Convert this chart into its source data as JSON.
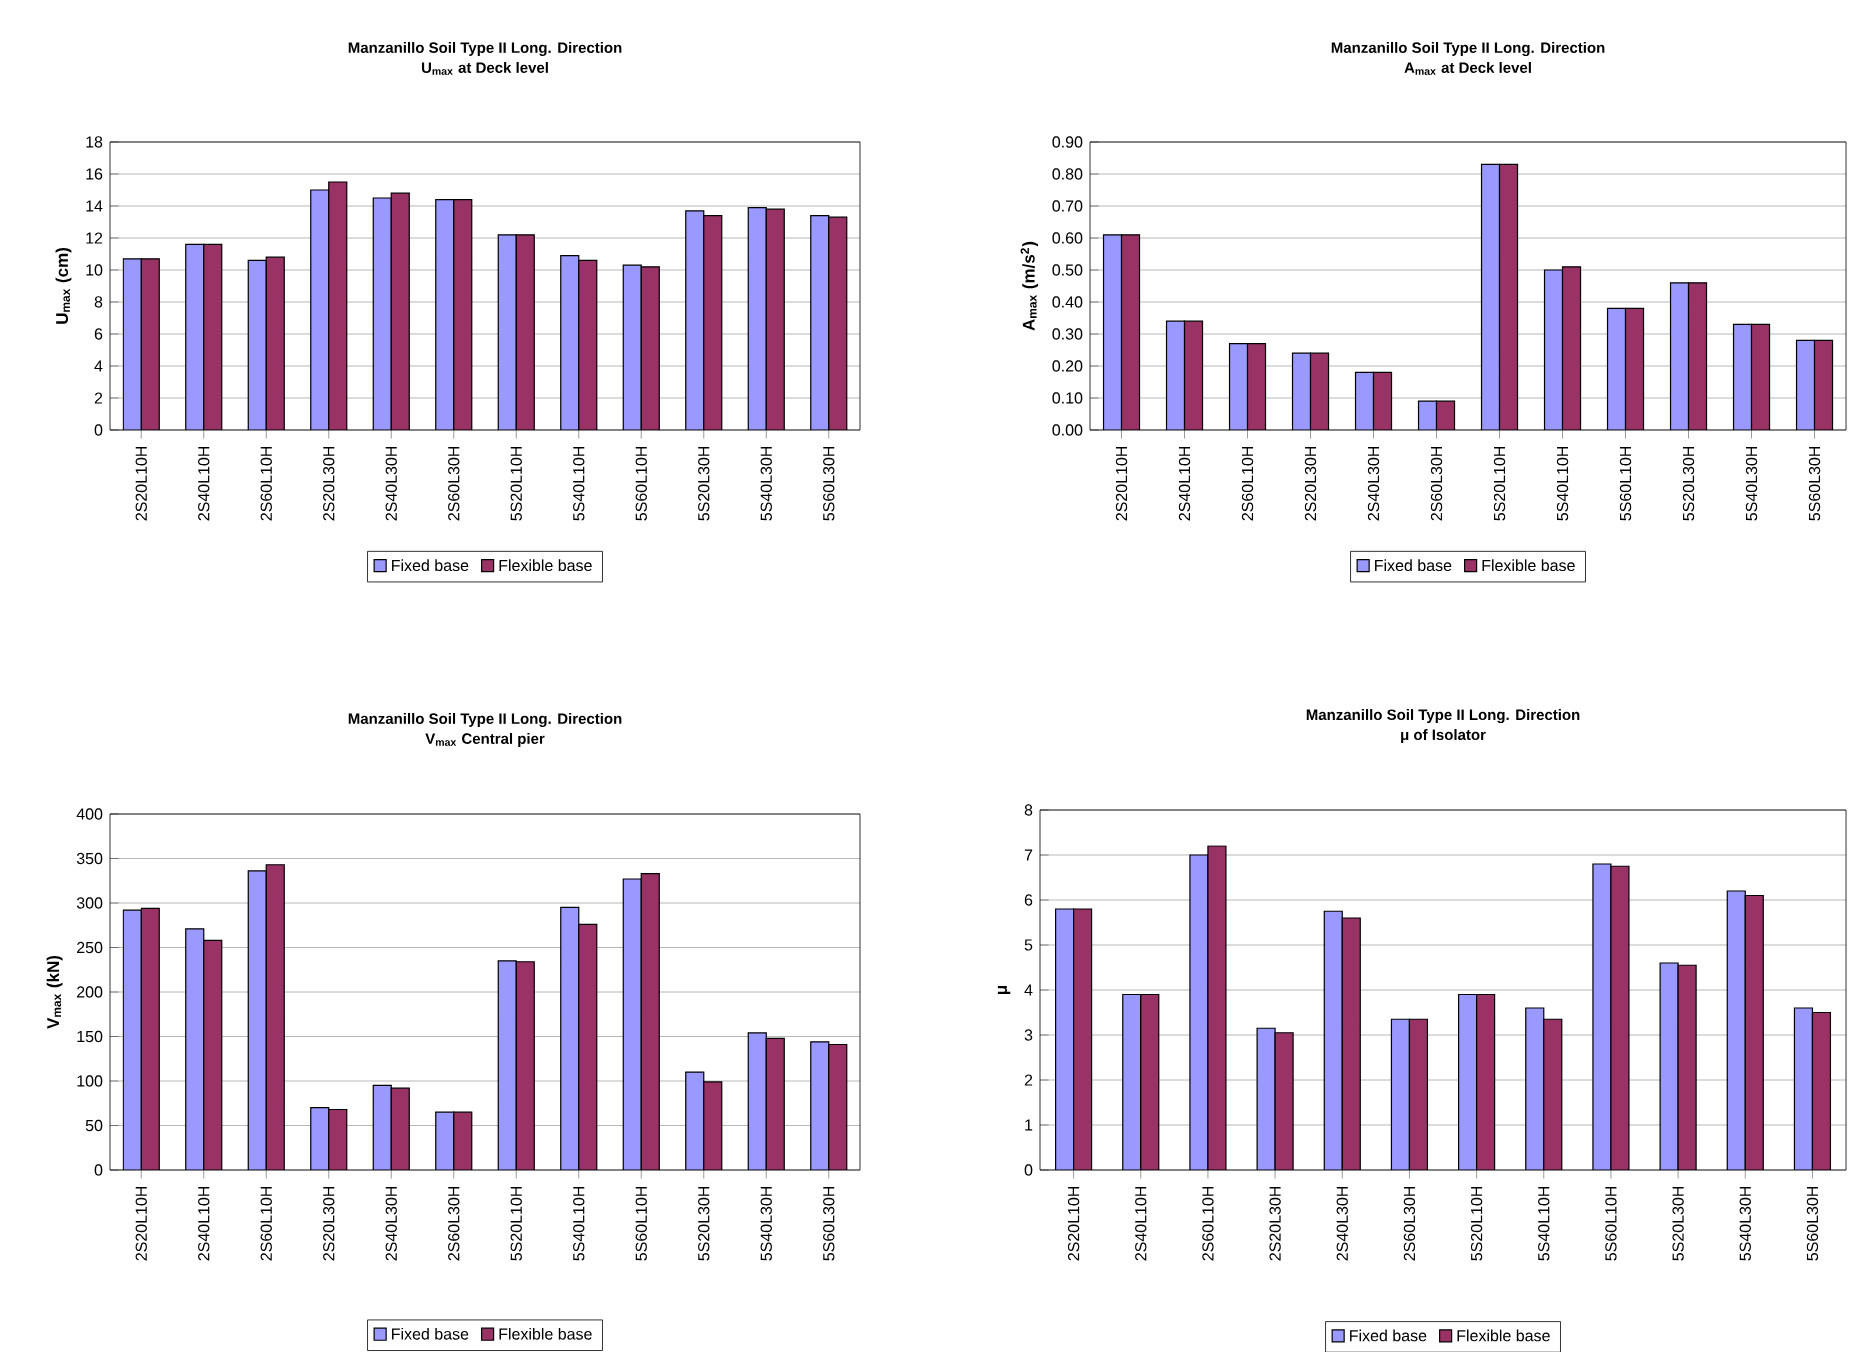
{
  "chart_data": [
    {
      "type": "bar",
      "title": "Manzanillo Soil Type II Long. Direction",
      "subtitle": "U$_{max}$ at Deck level",
      "ylabel": "U$_{max}$ (cm)",
      "categories": [
        "2S20L10H",
        "2S40L10H",
        "2S60L10H",
        "2S20L30H",
        "2S40L30H",
        "2S60L30H",
        "5S20L10H",
        "5S40L10H",
        "5S60L10H",
        "5S20L30H",
        "5S40L30H",
        "5S60L30H"
      ],
      "series": [
        {
          "name": "Fixed base",
          "color": "#9999ff",
          "values": [
            10.7,
            11.6,
            10.6,
            15.0,
            14.5,
            14.4,
            12.2,
            10.9,
            10.3,
            13.7,
            13.9,
            13.4
          ]
        },
        {
          "name": "Flexible base",
          "color": "#993366",
          "values": [
            10.7,
            11.6,
            10.8,
            15.5,
            14.8,
            14.4,
            12.2,
            10.6,
            10.2,
            13.4,
            13.8,
            13.3
          ]
        }
      ],
      "ylim": [
        0,
        18
      ],
      "yticks": [
        0,
        2,
        4,
        6,
        8,
        10,
        12,
        14,
        16,
        18
      ],
      "grid": "y",
      "legend": "bottom"
    },
    {
      "type": "bar",
      "title": "Manzanillo Soil Type II Long. Direction",
      "subtitle": "A$_{max}$ at Deck level",
      "ylabel": "A$_{max}$ (m/s$^{2}$)",
      "categories": [
        "2S20L10H",
        "2S40L10H",
        "2S60L10H",
        "2S20L30H",
        "2S40L30H",
        "2S60L30H",
        "5S20L10H",
        "5S40L10H",
        "5S60L10H",
        "5S20L30H",
        "5S40L30H",
        "5S60L30H"
      ],
      "series": [
        {
          "name": "Fixed base",
          "color": "#9999ff",
          "values": [
            0.61,
            0.34,
            0.27,
            0.24,
            0.18,
            0.09,
            0.83,
            0.5,
            0.38,
            0.46,
            0.33,
            0.28
          ]
        },
        {
          "name": "Flexible base",
          "color": "#993366",
          "values": [
            0.61,
            0.34,
            0.27,
            0.24,
            0.18,
            0.09,
            0.83,
            0.51,
            0.38,
            0.46,
            0.33,
            0.28
          ]
        }
      ],
      "ylim": [
        0,
        0.9
      ],
      "yticks": [
        {
          "value": 0,
          "label": "0.00"
        },
        {
          "value": 0.1,
          "label": "0.10"
        },
        {
          "value": 0.2,
          "label": "0.20"
        },
        {
          "value": 0.3,
          "label": "0.30"
        },
        {
          "value": 0.4,
          "label": "0.40"
        },
        {
          "value": 0.5,
          "label": "0.50"
        },
        {
          "value": 0.6,
          "label": "0.60"
        },
        {
          "value": 0.7,
          "label": "0.70"
        },
        {
          "value": 0.8,
          "label": "0.80"
        },
        {
          "value": 0.9,
          "label": "0.90"
        }
      ],
      "grid": "y",
      "legend": "bottom"
    },
    {
      "type": "bar",
      "title": "Manzanillo Soil Type II Long. Direction",
      "subtitle": "V$_{max}$ Central pier",
      "ylabel": "V$_{max}$ (kN)",
      "categories": [
        "2S20L10H",
        "2S40L10H",
        "2S60L10H",
        "2S20L30H",
        "2S40L30H",
        "2S60L30H",
        "5S20L10H",
        "5S40L10H",
        "5S60L10H",
        "5S20L30H",
        "5S40L30H",
        "5S60L30H"
      ],
      "series": [
        {
          "name": "Fixed base",
          "color": "#9999ff",
          "values": [
            292,
            271,
            336,
            70,
            95,
            65,
            235,
            295,
            327,
            110,
            154,
            144
          ]
        },
        {
          "name": "Flexible base",
          "color": "#993366",
          "values": [
            294,
            258,
            343,
            68,
            92,
            65,
            234,
            276,
            333,
            99,
            148,
            141
          ]
        }
      ],
      "ylim": [
        0,
        400
      ],
      "yticks": [
        0,
        50,
        100,
        150,
        200,
        250,
        300,
        350,
        400
      ],
      "grid": "y",
      "legend": "bottom"
    },
    {
      "type": "bar",
      "title": "Manzanillo Soil Type II Long. Direction",
      "subtitle": "μ of Isolator",
      "ylabel": "μ",
      "categories": [
        "2S20L10H",
        "2S40L10H",
        "2S60L10H",
        "2S20L30H",
        "2S40L30H",
        "2S60L30H",
        "5S20L10H",
        "5S40L10H",
        "5S60L10H",
        "5S20L30H",
        "5S40L30H",
        "5S60L30H"
      ],
      "series": [
        {
          "name": "Fixed base",
          "color": "#9999ff",
          "values": [
            5.8,
            3.9,
            7.0,
            3.15,
            5.75,
            3.35,
            3.9,
            3.6,
            6.8,
            4.6,
            6.2,
            3.6
          ]
        },
        {
          "name": "Flexible base",
          "color": "#993366",
          "values": [
            5.8,
            3.9,
            7.2,
            3.05,
            5.6,
            3.35,
            3.9,
            3.35,
            6.75,
            4.55,
            6.1,
            3.5
          ]
        }
      ],
      "ylim": [
        0,
        8
      ],
      "yticks": [
        0,
        1,
        2,
        3,
        4,
        5,
        6,
        7,
        8
      ],
      "grid": "y",
      "legend": "bottom"
    }
  ]
}
